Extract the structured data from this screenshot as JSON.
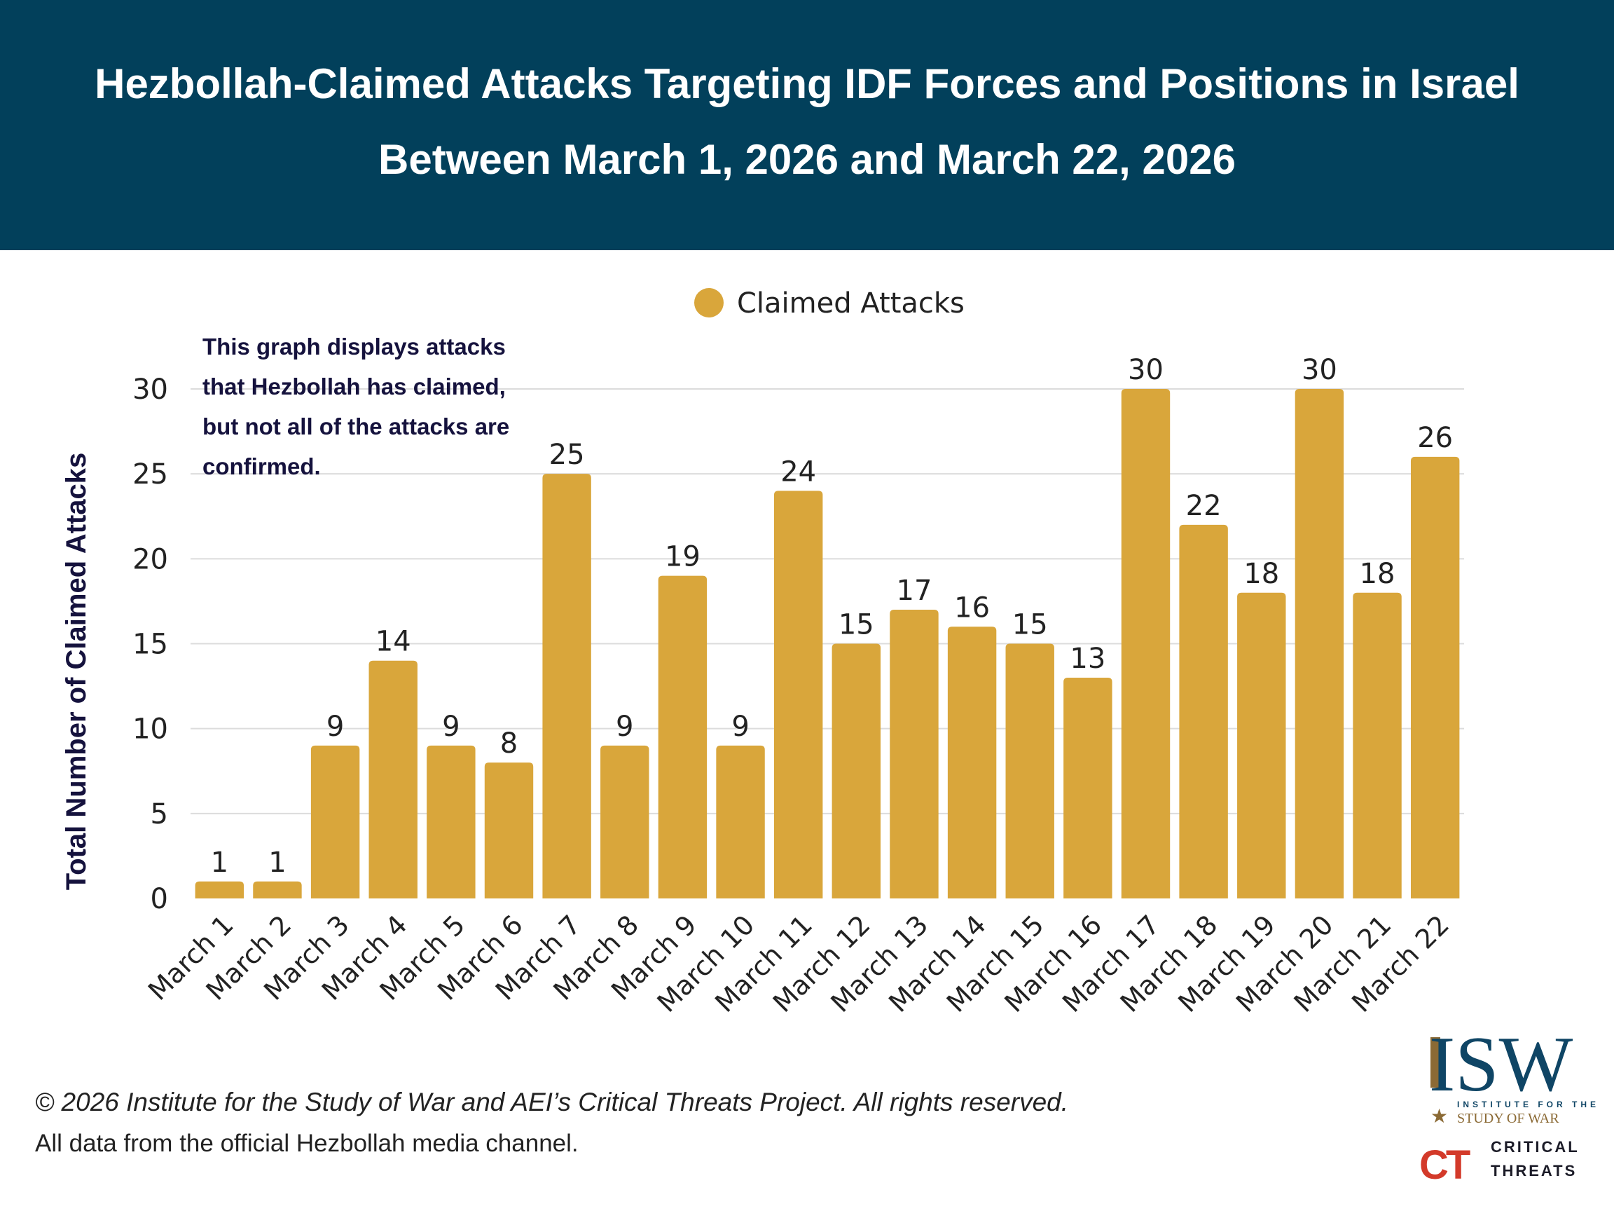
{
  "header": {
    "title_line1": "Hezbollah-Claimed Attacks Targeting IDF Forces and Positions in Israel",
    "title_line2": "Between March 1, 2026 and March 22, 2026"
  },
  "note": "This graph displays attacks that Hezbollah has claimed, but not all of the attacks are confirmed.",
  "footer": {
    "copyright": "© 2026 Institute for the Study of War and AEI’s Critical Threats Project. All rights reserved.",
    "source": "All data from the official Hezbollah media channel."
  },
  "logos": {
    "isw": "ISW",
    "isw_sub1": "INSTITUTE FOR THE",
    "isw_sub2": "STUDY OF WAR",
    "ct_mark": "CT",
    "ct_line1": "CRITICAL",
    "ct_line2": "THREATS"
  },
  "colors": {
    "header": "#02405b",
    "bar": "#d9a63b",
    "text_dark": "#15123d"
  },
  "chart_data": {
    "type": "bar",
    "title": "Hezbollah-Claimed Attacks Targeting IDF Forces and Positions in Israel Between March 1, 2026 and March 22, 2026",
    "xlabel": "",
    "ylabel": "Total Number of Claimed Attacks",
    "ylim": [
      0,
      30
    ],
    "yticks": [
      0,
      5,
      10,
      15,
      20,
      25,
      30
    ],
    "grid": true,
    "legend": "top-center",
    "categories": [
      "March 1",
      "March 2",
      "March 3",
      "March 4",
      "March 5",
      "March 6",
      "March 7",
      "March 8",
      "March 9",
      "March 10",
      "March 11",
      "March 12",
      "March 13",
      "March 14",
      "March 15",
      "March 16",
      "March 17",
      "March 18",
      "March 19",
      "March 20",
      "March 21",
      "March 22"
    ],
    "series": [
      {
        "name": "Claimed Attacks",
        "color": "#d9a63b",
        "values": [
          1,
          1,
          9,
          14,
          9,
          8,
          25,
          9,
          19,
          9,
          24,
          15,
          17,
          16,
          15,
          13,
          30,
          22,
          18,
          30,
          18,
          26
        ]
      }
    ]
  }
}
